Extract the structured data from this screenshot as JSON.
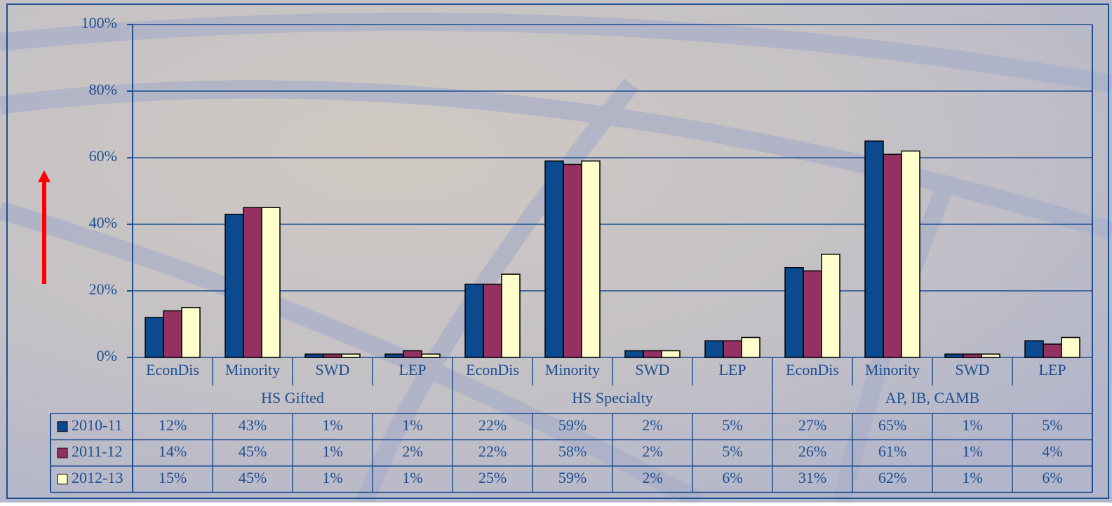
{
  "chart_data": {
    "type": "bar",
    "categories": [
      "EconDis",
      "Minority",
      "SWD",
      "LEP",
      "EconDis",
      "Minority",
      "SWD",
      "LEP",
      "EconDis",
      "Minority",
      "SWD",
      "LEP"
    ],
    "groups": [
      "HS Gifted",
      "HS Specialty",
      "AP, IB, CAMB"
    ],
    "series": [
      {
        "name": "2010-11",
        "color": "#0b4a8f",
        "values": [
          12,
          43,
          1,
          1,
          22,
          59,
          2,
          5,
          27,
          65,
          1,
          5
        ],
        "value_labels": [
          "12%",
          "43%",
          "1%",
          "1%",
          "22%",
          "59%",
          "2%",
          "5%",
          "27%",
          "65%",
          "1%",
          "5%"
        ]
      },
      {
        "name": "2011-12",
        "color": "#943163",
        "values": [
          14,
          45,
          1,
          2,
          22,
          58,
          2,
          5,
          26,
          61,
          1,
          4
        ],
        "value_labels": [
          "14%",
          "45%",
          "1%",
          "2%",
          "22%",
          "58%",
          "2%",
          "5%",
          "26%",
          "61%",
          "1%",
          "4%"
        ]
      },
      {
        "name": "2012-13",
        "color": "#ffffcc",
        "values": [
          15,
          45,
          1,
          1,
          25,
          59,
          2,
          6,
          31,
          62,
          1,
          6
        ],
        "value_labels": [
          "15%",
          "45%",
          "1%",
          "1%",
          "25%",
          "59%",
          "2%",
          "6%",
          "31%",
          "62%",
          "1%",
          "6%"
        ]
      }
    ],
    "ylim": [
      0,
      100
    ],
    "yticks": [
      {
        "value": 0,
        "label": "0%"
      },
      {
        "value": 20,
        "label": "20%"
      },
      {
        "value": 40,
        "label": "40%"
      },
      {
        "value": 60,
        "label": "60%"
      },
      {
        "value": 80,
        "label": "80%"
      },
      {
        "value": 100,
        "label": "100%"
      }
    ],
    "grid": true
  }
}
